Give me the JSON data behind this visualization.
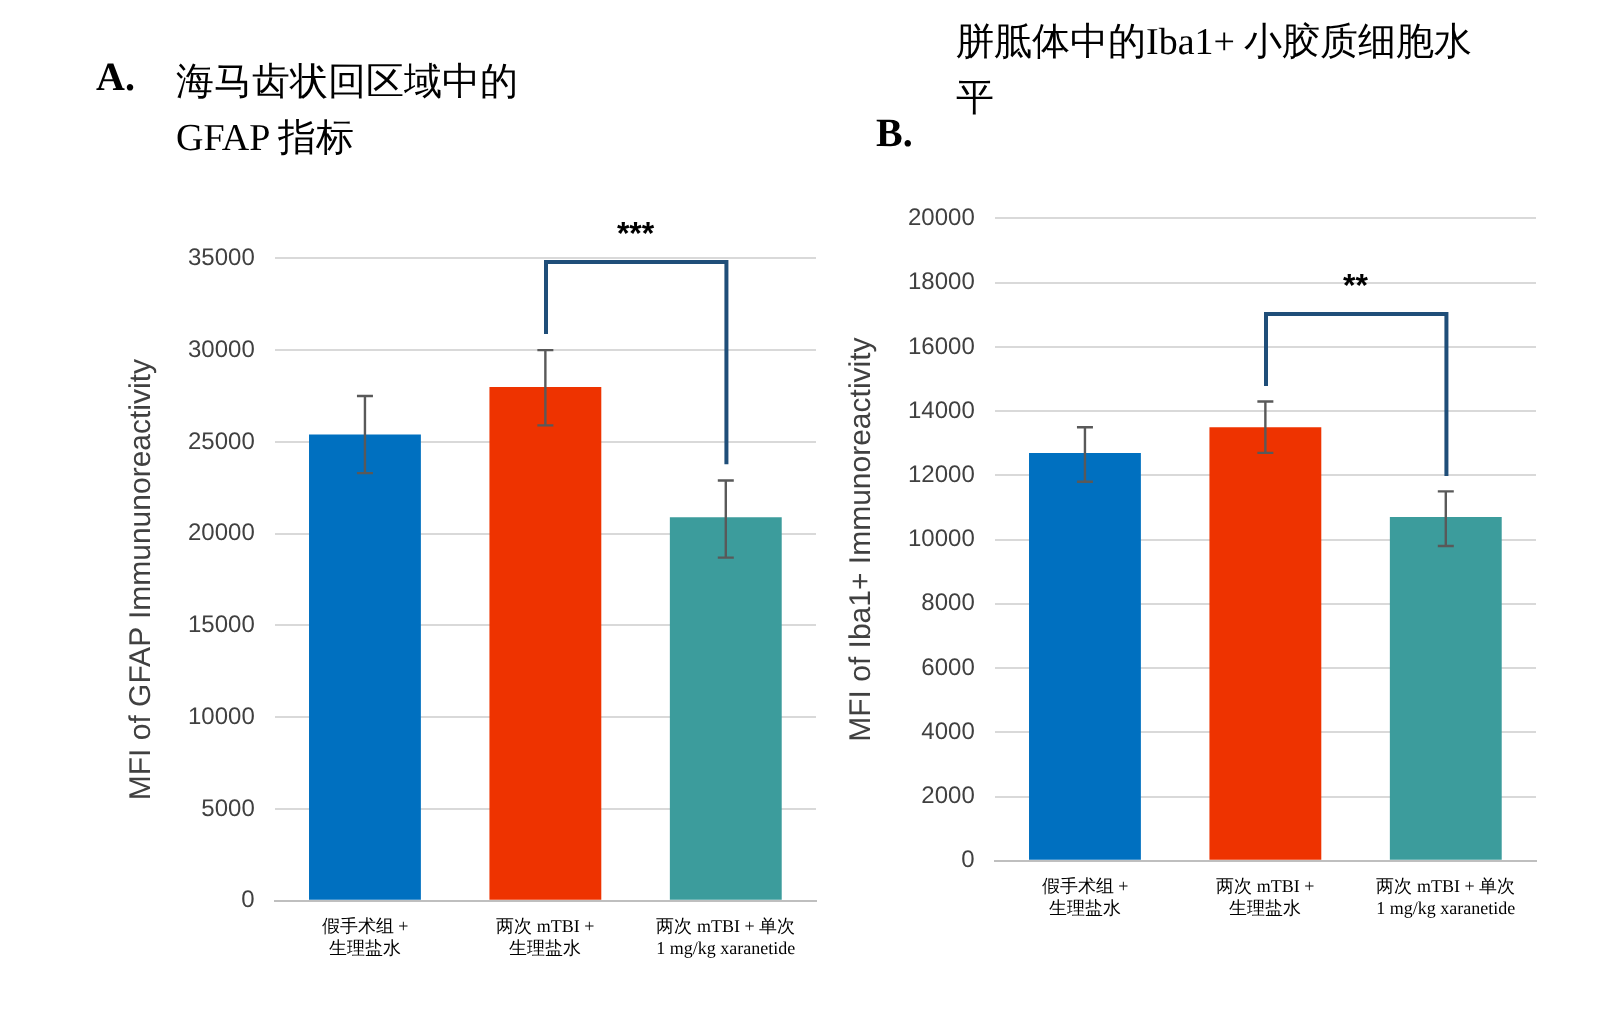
{
  "chart_data": [
    {
      "type": "bar",
      "title": "海马齿状回区域中的 GFAP 指标",
      "ylabel": "MFI of GFAP Immununoreactivity",
      "categories": [
        "假手术组 + 生理盐水",
        "两次 mTBI + 生理盐水",
        "两次 mTBI + 单次 1 mg/kg xaranetide"
      ],
      "values": [
        25400,
        28000,
        20900
      ],
      "colors": [
        "#0070c0",
        "#ee3300",
        "#3c9c9c"
      ],
      "errors": [
        [
          23300,
          27500
        ],
        [
          25900,
          30000
        ],
        [
          18700,
          22900
        ]
      ],
      "ylim": [
        0,
        35000
      ],
      "yticks": [
        0,
        5000,
        10000,
        15000,
        20000,
        25000,
        30000,
        35000
      ],
      "grid": "y",
      "annotations": [
        "A.",
        "***"
      ]
    },
    {
      "type": "bar",
      "title": "胼胝体中的Iba1+ 小胶质细胞水平",
      "ylabel": "MFI of Iba1+ Immunoreactivity",
      "categories": [
        "假手术组 + 生理盐水",
        "两次 mTBI + 生理盐水",
        "两次 mTBI + 单次 1 mg/kg xaranetide"
      ],
      "values": [
        12700,
        13500,
        10700
      ],
      "colors": [
        "#0070c0",
        "#ee3300",
        "#3c9c9c"
      ],
      "errors": [
        [
          11800,
          13500
        ],
        [
          12700,
          14300
        ],
        [
          9800,
          11500
        ]
      ],
      "ylim": [
        0,
        20000
      ],
      "yticks": [
        0,
        2000,
        4000,
        6000,
        8000,
        10000,
        12000,
        14000,
        16000,
        18000,
        20000
      ],
      "grid": "y",
      "annotations": [
        "B.",
        "**"
      ]
    }
  ]
}
